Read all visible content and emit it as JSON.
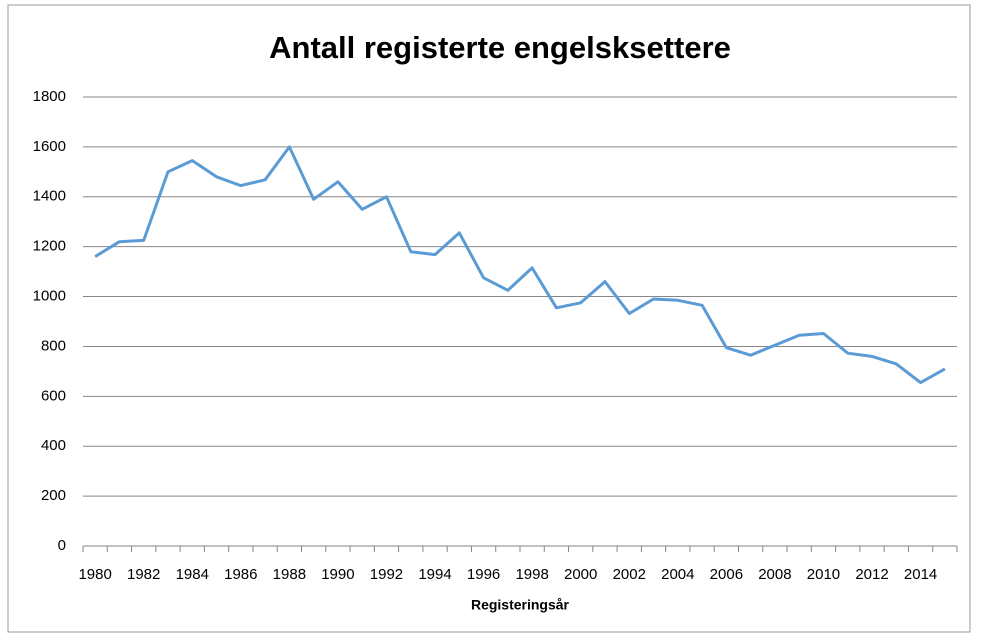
{
  "chart_data": {
    "type": "line",
    "title": "Antall registerte engelsksettere",
    "x_label": "Registeringsår",
    "categories": [
      "1980",
      null,
      "1982",
      null,
      "1984",
      null,
      "1986",
      null,
      "1988",
      null,
      "1990",
      null,
      "1992",
      null,
      "1994",
      null,
      "1996",
      null,
      "1998",
      null,
      "2000",
      null,
      "2002",
      null,
      "2004",
      null,
      "2006",
      null,
      "2008",
      null,
      "2010",
      null,
      "2012",
      null,
      "2014",
      null
    ],
    "series": [
      {
        "name": "Antall",
        "color": "#5b9bd5",
        "values": [
          1160,
          1220,
          1225,
          1500,
          1545,
          1480,
          1445,
          1468,
          1600,
          1390,
          1460,
          1350,
          1400,
          1180,
          1168,
          1255,
          1075,
          1025,
          1115,
          955,
          975,
          1060,
          932,
          990,
          985,
          965,
          795,
          765,
          805,
          845,
          852,
          773,
          760,
          730,
          655,
          710
        ]
      }
    ],
    "ylim": [
      0,
      1800
    ],
    "yticks": [
      0,
      200,
      400,
      600,
      800,
      1000,
      1200,
      1400,
      1600,
      1800
    ],
    "grid": true
  }
}
